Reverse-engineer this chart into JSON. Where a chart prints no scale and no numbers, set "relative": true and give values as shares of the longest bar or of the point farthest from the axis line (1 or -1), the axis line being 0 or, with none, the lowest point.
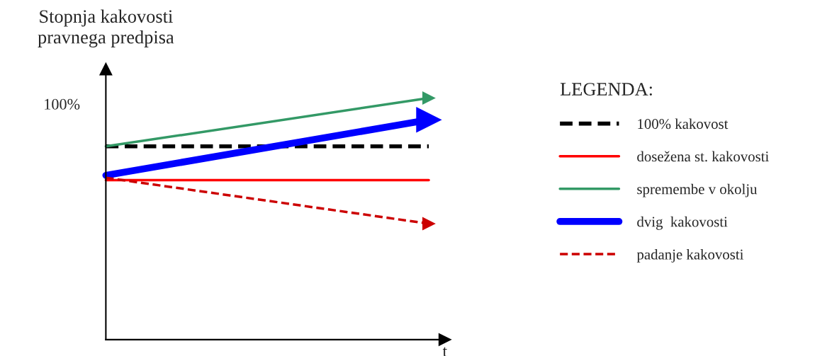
{
  "chart_data": {
    "type": "line",
    "relative": true,
    "ylabel": "Stopnja kakovosti\npravnega predpisa",
    "xlabel": "t",
    "legend_title": "LEGENDA:",
    "legend": "right",
    "annotations": [
      "100%"
    ],
    "categories": [
      null,
      null
    ],
    "series": [
      {
        "name": "100% kakovost",
        "color": "#000000",
        "values": [
          0.8,
          0.8
        ],
        "line_style": "dashed",
        "marker": "none"
      },
      {
        "name": "dosežena st. kakovosti",
        "color": "#ff0000",
        "values": [
          0.66,
          0.66
        ],
        "line_style": "solid",
        "marker": "none"
      },
      {
        "name": "spremembe v okolju",
        "color": "#339966",
        "values": [
          0.8,
          1.0
        ],
        "line_style": "solid",
        "marker": "triangle"
      },
      {
        "name": "dvig  kakovosti",
        "color": "#0000ff",
        "values": [
          0.68,
          0.91
        ],
        "line_style": "solid",
        "marker": "triangle"
      },
      {
        "name": "padanje kakovosti",
        "color": "#cc0000",
        "values": [
          0.67,
          0.48
        ],
        "line_style": "dashed",
        "marker": "triangle"
      }
    ]
  }
}
